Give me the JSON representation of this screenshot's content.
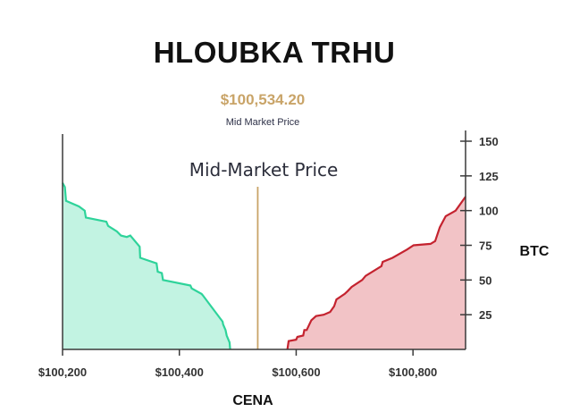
{
  "chart_data": {
    "type": "area",
    "title": "HLOUBKA TRHU",
    "mid_price": "$100,534.20",
    "mid_price_label": "Mid Market Price",
    "annotation": "Mid-Market Price",
    "mid_value": 100534.2,
    "xlabel": "CENA",
    "ylabel": "BTC",
    "xlim": [
      100200,
      100890
    ],
    "ylim": [
      0,
      150
    ],
    "x_ticks": [
      {
        "value": 100200,
        "label": "$100,200"
      },
      {
        "value": 100400,
        "label": "$100,400"
      },
      {
        "value": 100600,
        "label": "$100,600"
      },
      {
        "value": 100800,
        "label": "$100,800"
      }
    ],
    "y_ticks": [
      {
        "value": 25,
        "label": "25"
      },
      {
        "value": 50,
        "label": "50"
      },
      {
        "value": 75,
        "label": "75"
      },
      {
        "value": 100,
        "label": "100"
      },
      {
        "value": 125,
        "label": "125"
      },
      {
        "value": 150,
        "label": "150"
      }
    ],
    "bids": {
      "x": [
        100200,
        100204,
        100206,
        100228,
        100238,
        100240,
        100275,
        100278,
        100293,
        100300,
        100310,
        100316,
        100332,
        100333,
        100361,
        100363,
        100370,
        100372,
        100419,
        100421,
        100438,
        100440,
        100474,
        100475,
        100479,
        100481,
        100486,
        100487
      ],
      "y": [
        120,
        117,
        107,
        103,
        100,
        95,
        92,
        89,
        85,
        82,
        81,
        82,
        74,
        66,
        62,
        56,
        55,
        50,
        46,
        44,
        40,
        39,
        20,
        18,
        14,
        10,
        5,
        0
      ],
      "color": "#2ed39a",
      "fill": "#c2f3e2"
    },
    "asks": {
      "x": [
        100585,
        100587,
        100600,
        100602,
        100612,
        100614,
        100618,
        100626,
        100634,
        100647,
        100658,
        100665,
        100669,
        100683,
        100688,
        100695,
        100713,
        100719,
        100746,
        100748,
        100765,
        100790,
        100801,
        100830,
        100838,
        100846,
        100856,
        100873,
        100890
      ],
      "y": [
        0,
        6,
        7,
        9,
        10,
        14,
        14,
        21,
        24,
        25,
        27,
        31,
        36,
        40,
        42,
        45,
        50,
        53,
        60,
        63,
        66,
        72,
        75,
        76,
        78,
        88,
        96,
        100,
        110
      ],
      "color": "#c4232f",
      "fill": "#f2c3c6"
    }
  },
  "colors": {
    "accent_gold": "#c9a468",
    "axis": "#3a3a3a"
  }
}
